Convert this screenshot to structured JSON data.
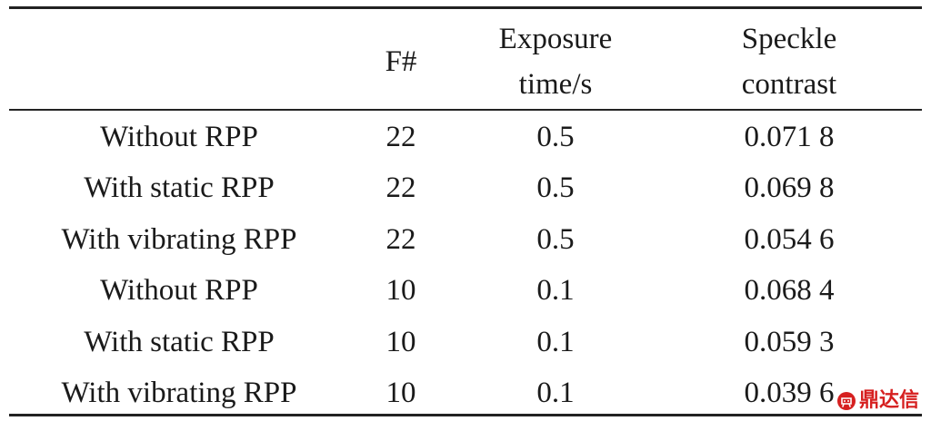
{
  "table": {
    "headers": {
      "col1": "",
      "col2": "F#",
      "col3_line1": "Exposure",
      "col3_line2": "time/s",
      "col4_line1": "Speckle",
      "col4_line2": "contrast"
    },
    "rows": [
      {
        "condition": "Without RPP",
        "f_number": "22",
        "exposure": "0.5",
        "contrast": "0.071 8"
      },
      {
        "condition": "With static RPP",
        "f_number": "22",
        "exposure": "0.5",
        "contrast": "0.069 8"
      },
      {
        "condition": "With vibrating RPP",
        "f_number": "22",
        "exposure": "0.5",
        "contrast": "0.054 6"
      },
      {
        "condition": "Without RPP",
        "f_number": "10",
        "exposure": "0.1",
        "contrast": "0.068 4"
      },
      {
        "condition": "With static RPP",
        "f_number": "10",
        "exposure": "0.1",
        "contrast": "0.059 3"
      },
      {
        "condition": "With vibrating RPP",
        "f_number": "10",
        "exposure": "0.1",
        "contrast": "0.039 6"
      }
    ]
  },
  "watermark": {
    "text": "鼎达信",
    "color": "#d62020",
    "icon": "watermark-logo-icon"
  }
}
